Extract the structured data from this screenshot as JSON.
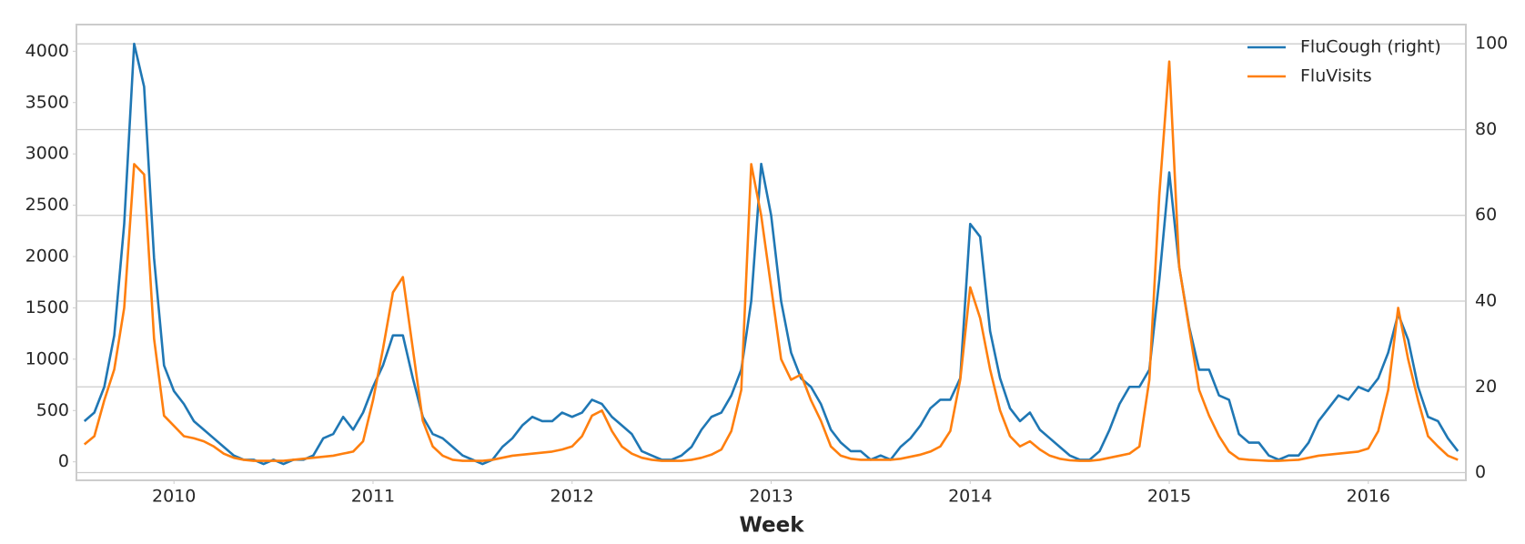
{
  "chart_data": {
    "type": "line",
    "xlabel": "Week",
    "x": [
      2009.55,
      2009.6,
      2009.65,
      2009.7,
      2009.75,
      2009.8,
      2009.85,
      2009.9,
      2009.95,
      2010,
      2010.05,
      2010.1,
      2010.15,
      2010.2,
      2010.25,
      2010.3,
      2010.35,
      2010.4,
      2010.45,
      2010.5,
      2010.55,
      2010.6,
      2010.65,
      2010.7,
      2010.75,
      2010.8,
      2010.85,
      2010.9,
      2010.95,
      2011,
      2011.05,
      2011.1,
      2011.15,
      2011.2,
      2011.25,
      2011.3,
      2011.35,
      2011.4,
      2011.45,
      2011.5,
      2011.55,
      2011.6,
      2011.65,
      2011.7,
      2011.75,
      2011.8,
      2011.85,
      2011.9,
      2011.95,
      2012,
      2012.05,
      2012.1,
      2012.15,
      2012.2,
      2012.25,
      2012.3,
      2012.35,
      2012.4,
      2012.45,
      2012.5,
      2012.55,
      2012.6,
      2012.65,
      2012.7,
      2012.75,
      2012.8,
      2012.85,
      2012.9,
      2012.95,
      2013,
      2013.05,
      2013.1,
      2013.15,
      2013.2,
      2013.25,
      2013.3,
      2013.35,
      2013.4,
      2013.45,
      2013.5,
      2013.55,
      2013.6,
      2013.65,
      2013.7,
      2013.75,
      2013.8,
      2013.85,
      2013.9,
      2013.95,
      2014,
      2014.05,
      2014.1,
      2014.15,
      2014.2,
      2014.25,
      2014.3,
      2014.35,
      2014.4,
      2014.45,
      2014.5,
      2014.55,
      2014.6,
      2014.65,
      2014.7,
      2014.75,
      2014.8,
      2014.85,
      2014.9,
      2014.95,
      2015,
      2015.05,
      2015.1,
      2015.15,
      2015.2,
      2015.25,
      2015.3,
      2015.35,
      2015.4,
      2015.45,
      2015.5,
      2015.55,
      2015.6,
      2015.65,
      2015.7,
      2015.75,
      2015.8,
      2015.85,
      2015.9,
      2015.95,
      2016,
      2016.05,
      2016.1,
      2016.15,
      2016.2,
      2016.25,
      2016.3,
      2016.35,
      2016.4,
      2016.45
    ],
    "series": [
      {
        "name": "FluCough (right)",
        "color": "#1f77b4",
        "axis": "y2",
        "values": [
          12,
          14,
          20,
          32,
          58,
          100,
          90,
          50,
          25,
          19,
          16,
          12,
          10,
          8,
          6,
          4,
          3,
          3,
          2,
          3,
          2,
          3,
          3,
          4,
          8,
          9,
          13,
          10,
          14,
          20,
          25,
          32,
          32,
          22,
          13,
          9,
          8,
          6,
          4,
          3,
          2,
          3,
          6,
          8,
          11,
          13,
          12,
          12,
          14,
          13,
          14,
          17,
          16,
          13,
          11,
          9,
          5,
          4,
          3,
          3,
          4,
          6,
          10,
          13,
          14,
          18,
          24,
          40,
          72,
          60,
          40,
          28,
          22,
          20,
          16,
          10,
          7,
          5,
          5,
          3,
          4,
          3,
          6,
          8,
          11,
          15,
          17,
          17,
          22,
          58,
          55,
          33,
          22,
          15,
          12,
          14,
          10,
          8,
          6,
          4,
          3,
          3,
          5,
          10,
          16,
          20,
          20,
          24,
          45,
          70,
          48,
          34,
          24,
          24,
          18,
          17,
          9,
          7,
          7,
          4,
          3,
          4,
          4,
          7,
          12,
          15,
          18,
          17,
          20,
          19,
          22,
          28,
          37,
          31,
          20,
          13,
          12,
          8,
          5
        ]
      },
      {
        "name": "FluVisits",
        "color": "#ff7f0e",
        "values": [
          170,
          250,
          600,
          900,
          1500,
          2900,
          2800,
          1200,
          450,
          350,
          250,
          230,
          200,
          150,
          80,
          40,
          20,
          10,
          10,
          10,
          10,
          20,
          30,
          40,
          50,
          60,
          80,
          100,
          200,
          600,
          1100,
          1650,
          1800,
          1100,
          400,
          150,
          60,
          20,
          10,
          10,
          10,
          20,
          40,
          60,
          70,
          80,
          90,
          100,
          120,
          150,
          250,
          450,
          500,
          300,
          150,
          80,
          40,
          20,
          10,
          10,
          10,
          20,
          40,
          70,
          120,
          300,
          700,
          2900,
          2400,
          1700,
          1000,
          800,
          850,
          600,
          400,
          150,
          60,
          30,
          20,
          20,
          20,
          20,
          30,
          50,
          70,
          100,
          150,
          300,
          800,
          1700,
          1400,
          900,
          500,
          250,
          150,
          200,
          120,
          60,
          30,
          15,
          10,
          10,
          20,
          40,
          60,
          80,
          150,
          800,
          2600,
          3900,
          1900,
          1300,
          700,
          450,
          250,
          100,
          30,
          20,
          15,
          10,
          10,
          15,
          20,
          40,
          60,
          70,
          80,
          90,
          100,
          130,
          300,
          700,
          1500,
          1000,
          600,
          250,
          150,
          60,
          20
        ]
      }
    ],
    "xlim": [
      2009.51,
      2016.49
    ],
    "xticks": [
      2010,
      2011,
      2012,
      2013,
      2014,
      2015,
      2016
    ],
    "ylim": [
      -180,
      4260
    ],
    "yticks": [
      0,
      500,
      1000,
      1500,
      2000,
      2500,
      3000,
      3500,
      4000
    ],
    "y2lim": [
      -1.8,
      104.5
    ],
    "y2ticks": [
      0,
      20,
      40,
      60,
      80,
      100
    ],
    "grid": true,
    "legend": "upper right"
  }
}
